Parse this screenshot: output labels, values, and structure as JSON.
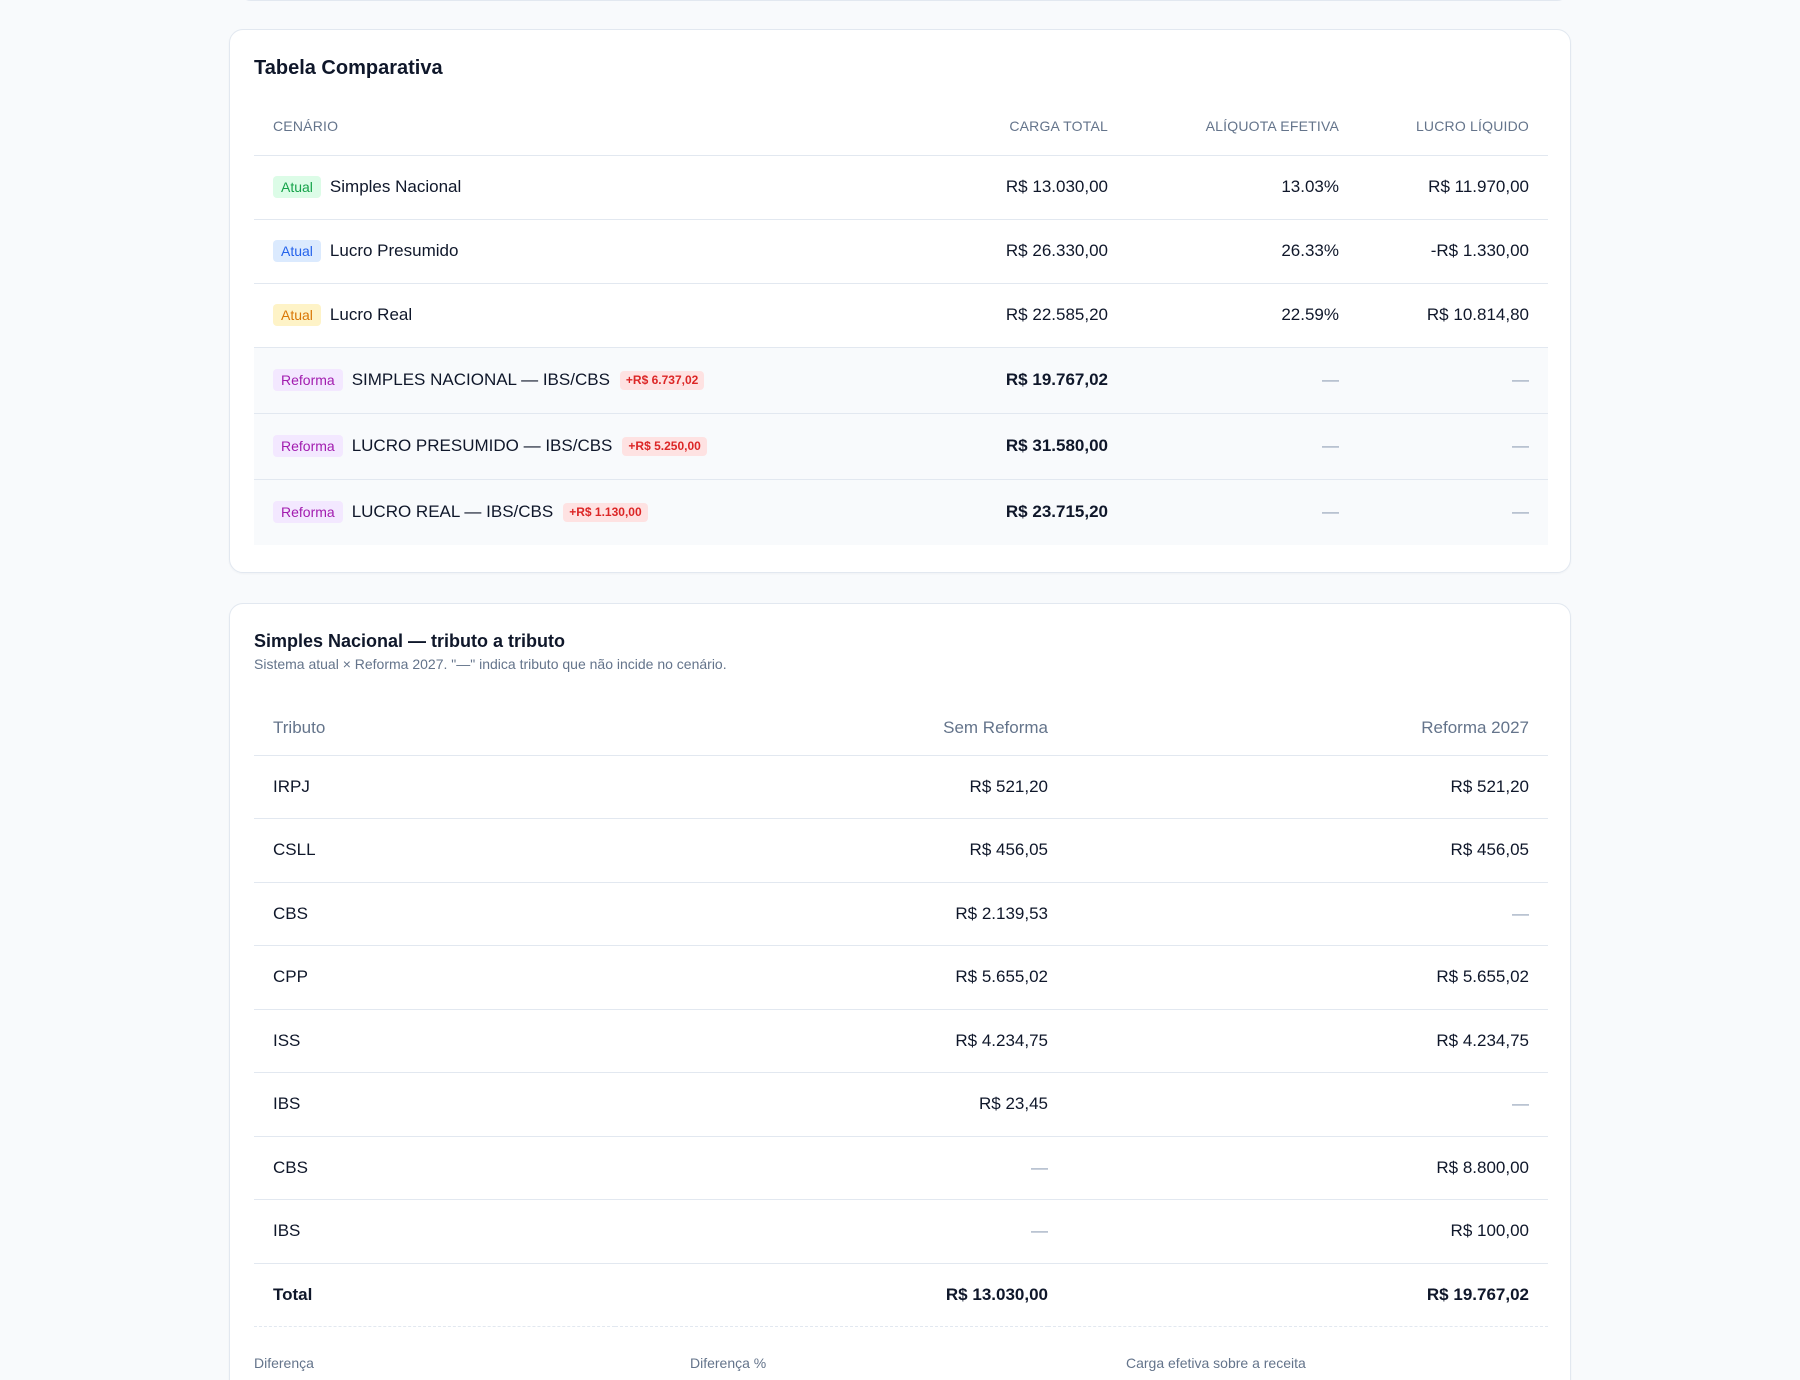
{
  "comparative": {
    "title": "Tabela Comparativa",
    "headers": [
      "CENÁRIO",
      "CARGA TOTAL",
      "ALÍQUOTA EFETIVA",
      "LUCRO LÍQUIDO"
    ],
    "current_rows": [
      {
        "badge": "Atual",
        "name": "Simples Nacional",
        "carga": "R$ 13.030,00",
        "aliquota": "13.03%",
        "lucro": "R$ 11.970,00"
      },
      {
        "badge": "Atual",
        "name": "Lucro Presumido",
        "carga": "R$ 26.330,00",
        "aliquota": "26.33%",
        "lucro": "-R$ 1.330,00"
      },
      {
        "badge": "Atual",
        "name": "Lucro Real",
        "carga": "R$ 22.585,20",
        "aliquota": "22.59%",
        "lucro": "R$ 10.814,80"
      }
    ],
    "reform_rows": [
      {
        "badge": "Reforma",
        "name": "Simples Nacional — IBS/CBS",
        "delta": "+R$ 6.737,02",
        "carga": "R$ 19.767,02",
        "aliquota": "—",
        "lucro": "—"
      },
      {
        "badge": "Reforma",
        "name": "Lucro Presumido — IBS/CBS",
        "delta": "+R$ 5.250,00",
        "carga": "R$ 31.580,00",
        "aliquota": "—",
        "lucro": "—"
      },
      {
        "badge": "Reforma",
        "name": "Lucro Real — IBS/CBS",
        "delta": "+R$ 1.130,00",
        "carga": "R$ 23.715,20",
        "aliquota": "—",
        "lucro": "—"
      }
    ]
  },
  "breakdown": {
    "title": "Simples Nacional — tributo a tributo",
    "subtitle": "Sistema atual × Reforma 2027. \"—\" indica tributo que não incide no cenário.",
    "headers": [
      "Tributo",
      "Sem Reforma",
      "Reforma 2027"
    ],
    "rows": [
      {
        "tributo": "IRPJ",
        "sem": "R$ 521,20",
        "com": "R$ 521,20"
      },
      {
        "tributo": "CSLL",
        "sem": "R$ 456,05",
        "com": "R$ 456,05"
      },
      {
        "tributo": "CBS",
        "sem": "R$ 2.139,53",
        "com": "—"
      },
      {
        "tributo": "CPP",
        "sem": "R$ 5.655,02",
        "com": "R$ 5.655,02"
      },
      {
        "tributo": "ISS",
        "sem": "R$ 4.234,75",
        "com": "R$ 4.234,75"
      },
      {
        "tributo": "IBS",
        "sem": "R$ 23,45",
        "com": "—"
      },
      {
        "tributo": "CBS",
        "sem": "—",
        "com": "R$ 8.800,00"
      },
      {
        "tributo": "IBS",
        "sem": "—",
        "com": "R$ 100,00"
      }
    ],
    "total": {
      "label": "Total",
      "sem": "R$ 13.030,00",
      "com": "R$ 19.767,02"
    },
    "footer_labels": [
      "Diferença",
      "Diferença %",
      "Carga efetiva sobre a receita"
    ]
  },
  "colors": {
    "badge_atual_simples": "#16a34a",
    "badge_atual_presumido": "#2563eb",
    "badge_atual_real": "#d97706",
    "badge_reforma": "#a21caf",
    "delta_red": "#dc2626"
  }
}
